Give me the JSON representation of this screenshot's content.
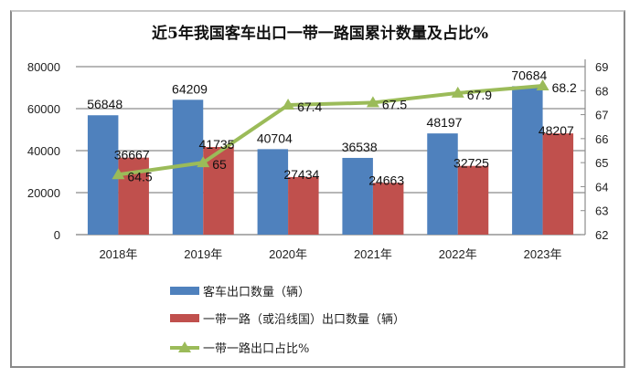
{
  "chart_data": {
    "type": "bar",
    "title": "近5年我国客车出口一带一路国累计数量及占比%",
    "categories": [
      "2018年",
      "2019年",
      "2020年",
      "2021年",
      "2022年",
      "2023年"
    ],
    "series": [
      {
        "name": "客车出口数量（辆）",
        "type": "bar",
        "axis": "left",
        "color": "#4f81bd",
        "values": [
          56848,
          64209,
          40704,
          36538,
          48197,
          70684
        ]
      },
      {
        "name": "一带一路（或沿线国）出口数量（辆）",
        "type": "bar",
        "axis": "left",
        "color": "#c0504d",
        "values": [
          36667,
          41735,
          27434,
          24663,
          32725,
          48207
        ]
      },
      {
        "name": "一带一路出口占比%",
        "type": "line",
        "axis": "right",
        "color": "#9bbb59",
        "marker": "triangle",
        "values": [
          64.5,
          65,
          67.4,
          67.5,
          67.9,
          68.2
        ]
      }
    ],
    "y_left": {
      "min": 0,
      "max": 80000,
      "ticks": [
        0,
        20000,
        40000,
        60000,
        80000
      ]
    },
    "y_right": {
      "min": 62,
      "max": 69,
      "ticks": [
        62,
        63,
        64,
        65,
        66,
        67,
        68,
        69
      ]
    },
    "grid": true,
    "legend_position": "bottom"
  }
}
